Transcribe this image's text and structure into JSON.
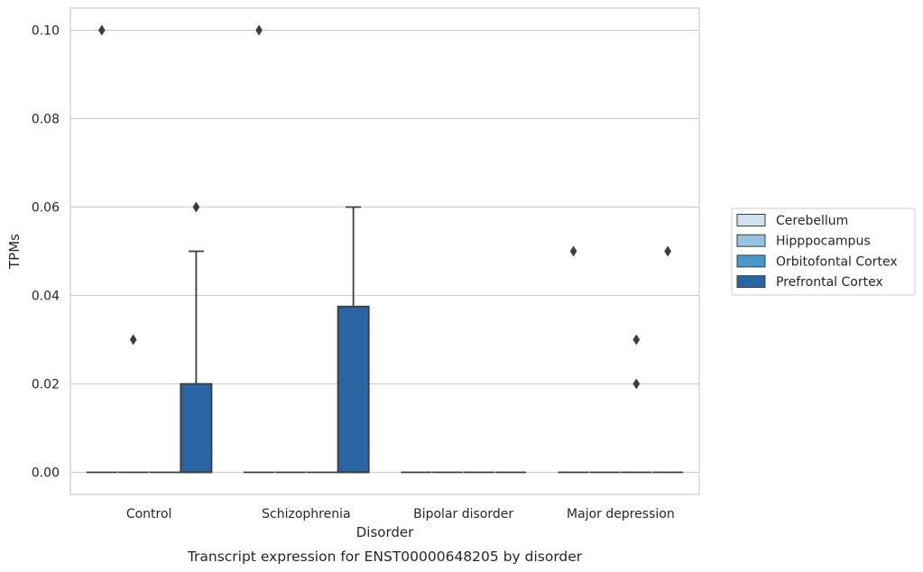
{
  "chart_data": {
    "type": "box",
    "title": "",
    "caption": "Transcript expression for ENST00000648205 by disorder",
    "xlabel": "Disorder",
    "ylabel": "TPMs",
    "ylim": [
      -0.005,
      0.105
    ],
    "yticks": [
      0.0,
      0.02,
      0.04,
      0.06,
      0.08,
      0.1
    ],
    "ytick_labels": [
      "0.00",
      "0.02",
      "0.04",
      "0.06",
      "0.08",
      "0.10"
    ],
    "grid": "horizontal",
    "legend_position": "right",
    "categories": [
      "Control",
      "Schizophrenia",
      "Bipolar disorder",
      "Major depression"
    ],
    "series": [
      {
        "name": "Cerebellum",
        "color": "#d0e1f2",
        "boxes": [
          {
            "q1": 0.0,
            "median": 0.0,
            "q3": 0.0,
            "whislo": 0.0,
            "whishi": 0.0,
            "fliers": [
              0.1
            ]
          },
          {
            "q1": 0.0,
            "median": 0.0,
            "q3": 0.0,
            "whislo": 0.0,
            "whishi": 0.0,
            "fliers": [
              0.1
            ]
          },
          {
            "q1": 0.0,
            "median": 0.0,
            "q3": 0.0,
            "whislo": 0.0,
            "whishi": 0.0,
            "fliers": []
          },
          {
            "q1": 0.0,
            "median": 0.0,
            "q3": 0.0,
            "whislo": 0.0,
            "whishi": 0.0,
            "fliers": [
              0.05
            ]
          }
        ]
      },
      {
        "name": "Hipppocampus",
        "color": "#94c4df",
        "boxes": [
          {
            "q1": 0.0,
            "median": 0.0,
            "q3": 0.0,
            "whislo": 0.0,
            "whishi": 0.0,
            "fliers": [
              0.03
            ]
          },
          {
            "q1": 0.0,
            "median": 0.0,
            "q3": 0.0,
            "whislo": 0.0,
            "whishi": 0.0,
            "fliers": []
          },
          {
            "q1": 0.0,
            "median": 0.0,
            "q3": 0.0,
            "whislo": 0.0,
            "whishi": 0.0,
            "fliers": []
          },
          {
            "q1": 0.0,
            "median": 0.0,
            "q3": 0.0,
            "whislo": 0.0,
            "whishi": 0.0,
            "fliers": []
          }
        ]
      },
      {
        "name": "Orbitofontal Cortex",
        "color": "#4a98c9",
        "boxes": [
          {
            "q1": 0.0,
            "median": 0.0,
            "q3": 0.0,
            "whislo": 0.0,
            "whishi": 0.0,
            "fliers": []
          },
          {
            "q1": 0.0,
            "median": 0.0,
            "q3": 0.0,
            "whislo": 0.0,
            "whishi": 0.0,
            "fliers": []
          },
          {
            "q1": 0.0,
            "median": 0.0,
            "q3": 0.0,
            "whislo": 0.0,
            "whishi": 0.0,
            "fliers": []
          },
          {
            "q1": 0.0,
            "median": 0.0,
            "q3": 0.0,
            "whislo": 0.0,
            "whishi": 0.0,
            "fliers": [
              0.02,
              0.03
            ]
          }
        ]
      },
      {
        "name": "Prefrontal Cortex",
        "color": "#2a64a2",
        "boxes": [
          {
            "q1": 0.0,
            "median": 0.0,
            "q3": 0.02,
            "whislo": 0.0,
            "whishi": 0.05,
            "fliers": [
              0.06
            ]
          },
          {
            "q1": 0.0,
            "median": 0.0,
            "q3": 0.0375,
            "whislo": 0.0,
            "whishi": 0.06,
            "fliers": []
          },
          {
            "q1": 0.0,
            "median": 0.0,
            "q3": 0.0,
            "whislo": 0.0,
            "whishi": 0.0,
            "fliers": []
          },
          {
            "q1": 0.0,
            "median": 0.0,
            "q3": 0.0,
            "whislo": 0.0,
            "whishi": 0.0,
            "fliers": [
              0.05
            ]
          }
        ]
      }
    ]
  }
}
